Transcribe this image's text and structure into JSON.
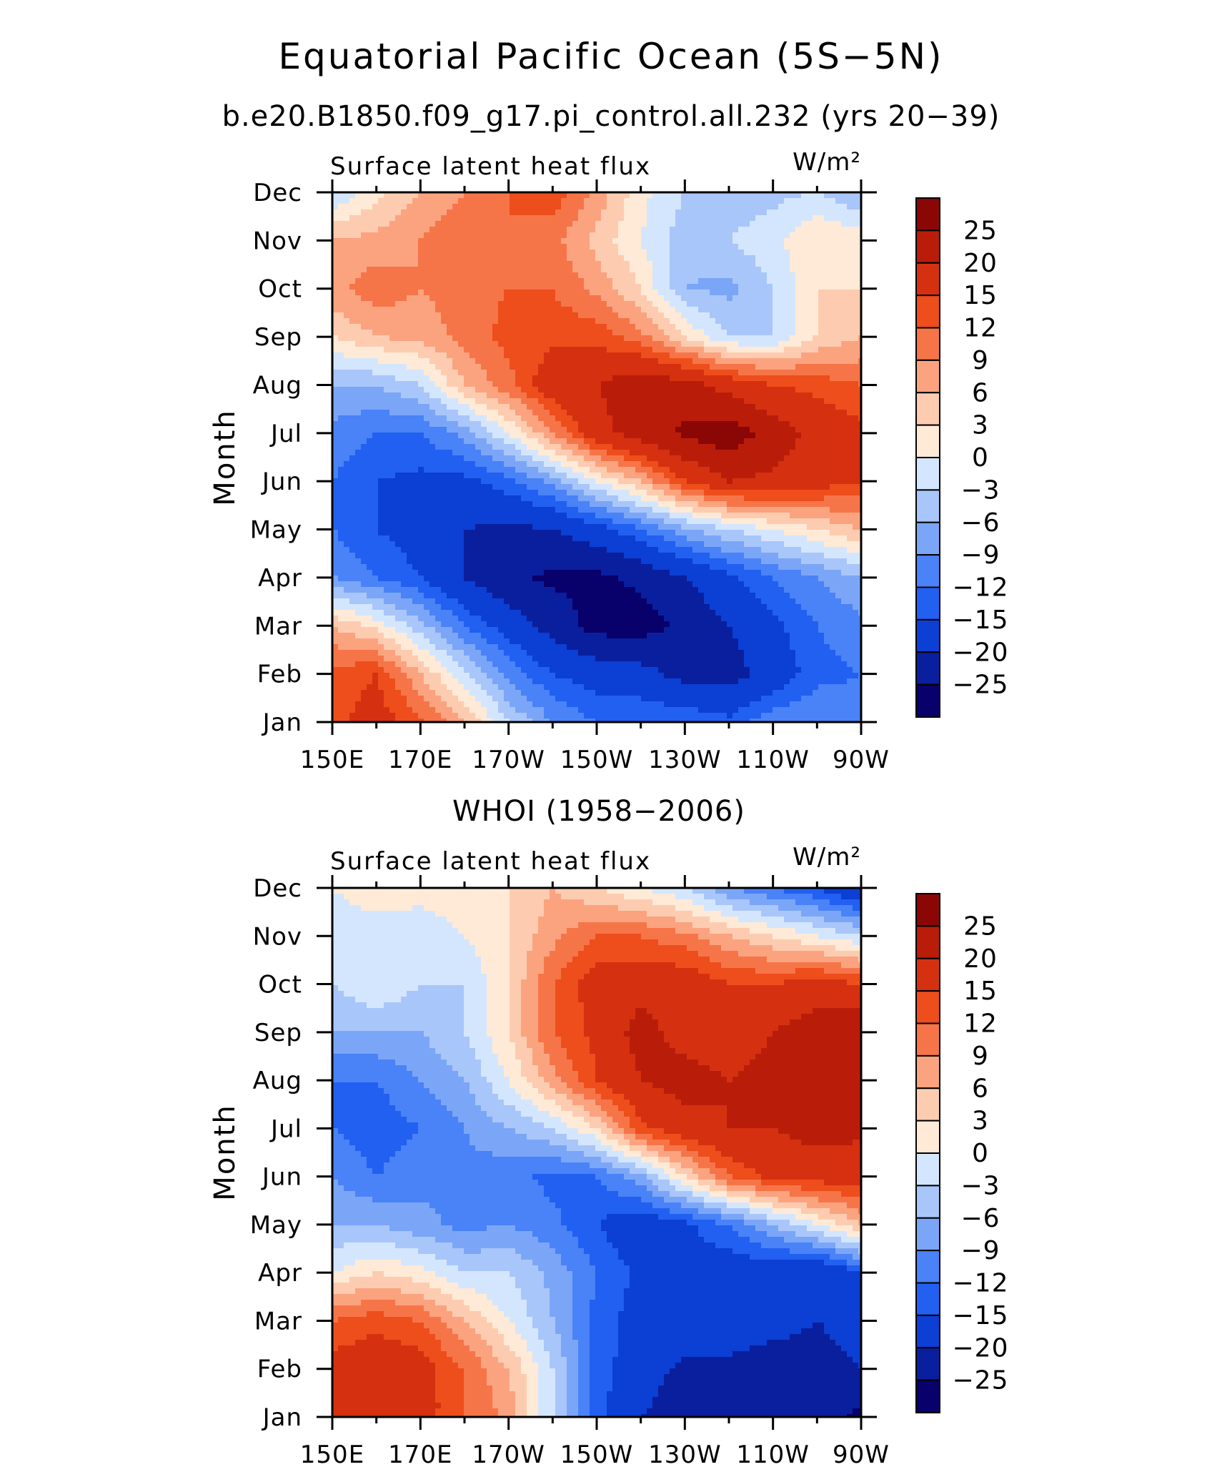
{
  "figure": {
    "title": "Equatorial Pacific Ocean (5S−5N)"
  },
  "colors": {
    "levels": [
      "#08006b",
      "#0a1f9e",
      "#0c3fd3",
      "#2160f0",
      "#4a82f7",
      "#7ba6f7",
      "#a9c6fa",
      "#d4e6fd",
      "#feead6",
      "#fdccb0",
      "#fba37f",
      "#f67548",
      "#ed4e1c",
      "#d53110",
      "#b91d0a",
      "#8b0705"
    ]
  },
  "chart_data": [
    {
      "type": "heatmap",
      "subtitle": "b.e20.B1850.f09_g17.pi_control.all.232 (yrs 20−39)",
      "panel_label": "Surface latent heat flux",
      "units": "W/m²",
      "ylabel": "Month",
      "x_ticks": [
        "150E",
        "170E",
        "170W",
        "150W",
        "130W",
        "110W",
        "90W"
      ],
      "x_range_deg_lon": [
        150,
        270
      ],
      "y_ticks": [
        "Jan",
        "Feb",
        "Mar",
        "Apr",
        "May",
        "Jun",
        "Jul",
        "Aug",
        "Sep",
        "Oct",
        "Nov",
        "Dec"
      ],
      "colorbar": {
        "levels": [
          -25,
          -20,
          -15,
          -12,
          -9,
          -6,
          -3,
          0,
          3,
          6,
          9,
          12,
          15,
          20,
          25
        ],
        "labels": [
          "25",
          "20",
          "15",
          "12",
          "9",
          "6",
          "3",
          "0",
          "−3",
          "−6",
          "−9",
          "−12",
          "−15",
          "−20",
          "−25"
        ]
      },
      "lon": [
        150,
        160,
        170,
        180,
        190,
        200,
        210,
        220,
        230,
        240,
        250,
        260,
        270
      ],
      "months": [
        "Jan",
        "Feb",
        "Mar",
        "Apr",
        "May",
        "Jun",
        "Jul",
        "Aug",
        "Sep",
        "Oct",
        "Nov",
        "Dec"
      ],
      "values": [
        [
          14,
          17,
          13,
          6,
          -3,
          -9,
          -12,
          -12,
          -12,
          -14,
          -10,
          -9,
          -11
        ],
        [
          13,
          15,
          6,
          -2,
          -10,
          -15,
          -17,
          -18,
          -22,
          -22,
          -18,
          -13,
          -12
        ],
        [
          6,
          2,
          -5,
          -12,
          -17,
          -22,
          -27,
          -27,
          -24,
          -20,
          -16,
          -12,
          -10
        ],
        [
          -9,
          -12,
          -15,
          -20,
          -24,
          -26,
          -26,
          -24,
          -20,
          -16,
          -12,
          -9,
          -6
        ],
        [
          -12,
          -15,
          -17,
          -20,
          -21,
          -20,
          -17,
          -12,
          -7,
          -3,
          0,
          3,
          6
        ],
        [
          -12,
          -15,
          -16,
          -16,
          -13,
          -8,
          0,
          6,
          15,
          20,
          19,
          17,
          15
        ],
        [
          -10,
          -12,
          -12,
          -8,
          0,
          9,
          18,
          23,
          26,
          28,
          23,
          18,
          16
        ],
        [
          -6,
          -6,
          -3,
          6,
          11,
          18,
          20,
          23,
          22,
          18,
          15,
          14,
          12
        ],
        [
          3,
          6,
          7,
          10,
          13,
          14,
          14,
          10,
          3,
          -3,
          -3,
          3,
          6
        ],
        [
          8,
          11,
          9,
          11,
          12,
          12,
          8,
          3,
          -6,
          -7,
          -3,
          3,
          3
        ],
        [
          6,
          7,
          9,
          12,
          12,
          10,
          5,
          0,
          -5,
          -3,
          -1,
          3,
          2
        ],
        [
          -3,
          2,
          6,
          9,
          12,
          14,
          8,
          1,
          -3,
          -5,
          -4,
          -3,
          -6
        ]
      ]
    },
    {
      "type": "heatmap",
      "subtitle": "WHOI (1958−2006)",
      "panel_label": "Surface latent heat flux",
      "units": "W/m²",
      "ylabel": "Month",
      "x_ticks": [
        "150E",
        "170E",
        "170W",
        "150W",
        "130W",
        "110W",
        "90W"
      ],
      "x_range_deg_lon": [
        150,
        270
      ],
      "y_ticks": [
        "Jan",
        "Feb",
        "Mar",
        "Apr",
        "May",
        "Jun",
        "Jul",
        "Aug",
        "Sep",
        "Oct",
        "Nov",
        "Dec"
      ],
      "colorbar": {
        "levels": [
          -25,
          -20,
          -15,
          -12,
          -9,
          -6,
          -3,
          0,
          3,
          6,
          9,
          12,
          15,
          20,
          25
        ],
        "labels": [
          "25",
          "20",
          "15",
          "12",
          "9",
          "6",
          "3",
          "0",
          "−3",
          "−6",
          "−9",
          "−12",
          "−15",
          "−20",
          "−25"
        ]
      },
      "lon": [
        150,
        160,
        170,
        180,
        190,
        200,
        210,
        220,
        230,
        240,
        250,
        260,
        270
      ],
      "months": [
        "Jan",
        "Feb",
        "Mar",
        "Apr",
        "May",
        "Jun",
        "Jul",
        "Aug",
        "Sep",
        "Oct",
        "Nov",
        "Dec"
      ],
      "values": [
        [
          16,
          17,
          17,
          12,
          8,
          -3,
          -14,
          -20,
          -22,
          -22,
          -20,
          -23,
          -26
        ],
        [
          17,
          18,
          17,
          12,
          6,
          -3,
          -13,
          -18,
          -21,
          -22,
          -24,
          -24,
          -20
        ],
        [
          12,
          14,
          12,
          6,
          0,
          -6,
          -13,
          -17,
          -17,
          -15,
          -17,
          -20,
          -16
        ],
        [
          0,
          3,
          1,
          -3,
          -3,
          -7,
          -12,
          -16,
          -16,
          -18,
          -18,
          -20,
          -15
        ],
        [
          -6,
          -6,
          -8,
          -10,
          -9,
          -11,
          -15,
          -18,
          -16,
          -12,
          -6,
          0,
          6
        ],
        [
          -9,
          -12,
          -10,
          -10,
          -11,
          -13,
          -12,
          -7,
          3,
          12,
          16,
          17,
          17
        ],
        [
          -12,
          -14,
          -12,
          -9,
          -6,
          -3,
          3,
          14,
          18,
          20,
          20,
          22,
          21
        ],
        [
          -12,
          -12,
          -9,
          -6,
          0,
          8,
          15,
          20,
          22,
          20,
          22,
          23,
          22
        ],
        [
          -6,
          -6,
          -6,
          -3,
          3,
          12,
          16,
          22,
          18,
          17,
          20,
          23,
          24
        ],
        [
          -3,
          0,
          -3,
          -3,
          3,
          12,
          17,
          18,
          18,
          15,
          15,
          17,
          15
        ],
        [
          -3,
          -3,
          -3,
          0,
          3,
          8,
          12,
          12,
          10,
          6,
          3,
          0,
          -3
        ],
        [
          0,
          3,
          2,
          3,
          3,
          6,
          3,
          0,
          -3,
          -9,
          -12,
          -15,
          -20
        ]
      ]
    }
  ]
}
